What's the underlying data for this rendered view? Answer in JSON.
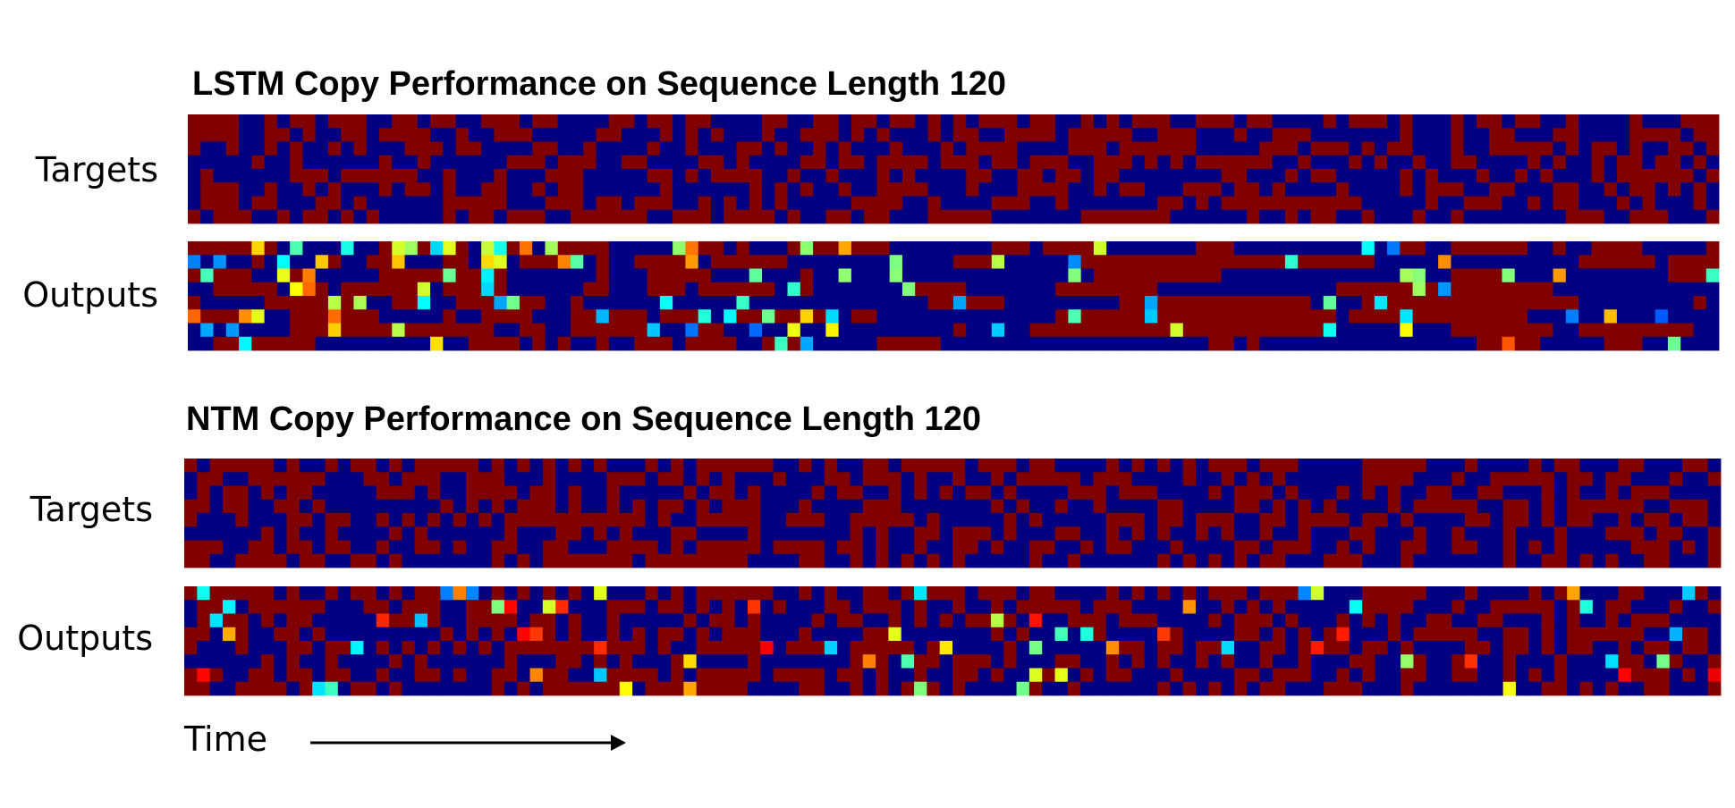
{
  "chart_data": [
    {
      "type": "heatmap",
      "title": "LSTM Copy Performance on Sequence Length 120",
      "row_labels": [
        "Targets",
        "Outputs"
      ],
      "rows_per_panel": 8,
      "columns": 120,
      "colormap": "jet",
      "value_range": [
        0,
        1
      ],
      "panels": {
        "Targets": {
          "style": "binary",
          "seed": 11
        },
        "Outputs": {
          "style": "lstm",
          "seed": 23
        }
      }
    },
    {
      "type": "heatmap",
      "title": "NTM Copy Performance on Sequence Length 120",
      "row_labels": [
        "Targets",
        "Outputs"
      ],
      "rows_per_panel": 8,
      "columns": 120,
      "colormap": "jet",
      "value_range": [
        0,
        1
      ],
      "panels": {
        "Targets": {
          "style": "binary",
          "seed": 37
        },
        "Outputs": {
          "style": "ntm",
          "seed": 37
        }
      }
    }
  ],
  "time_label": "Time",
  "colors": {
    "low": "#00008f",
    "high": "#800000",
    "arrow": "#000000"
  }
}
